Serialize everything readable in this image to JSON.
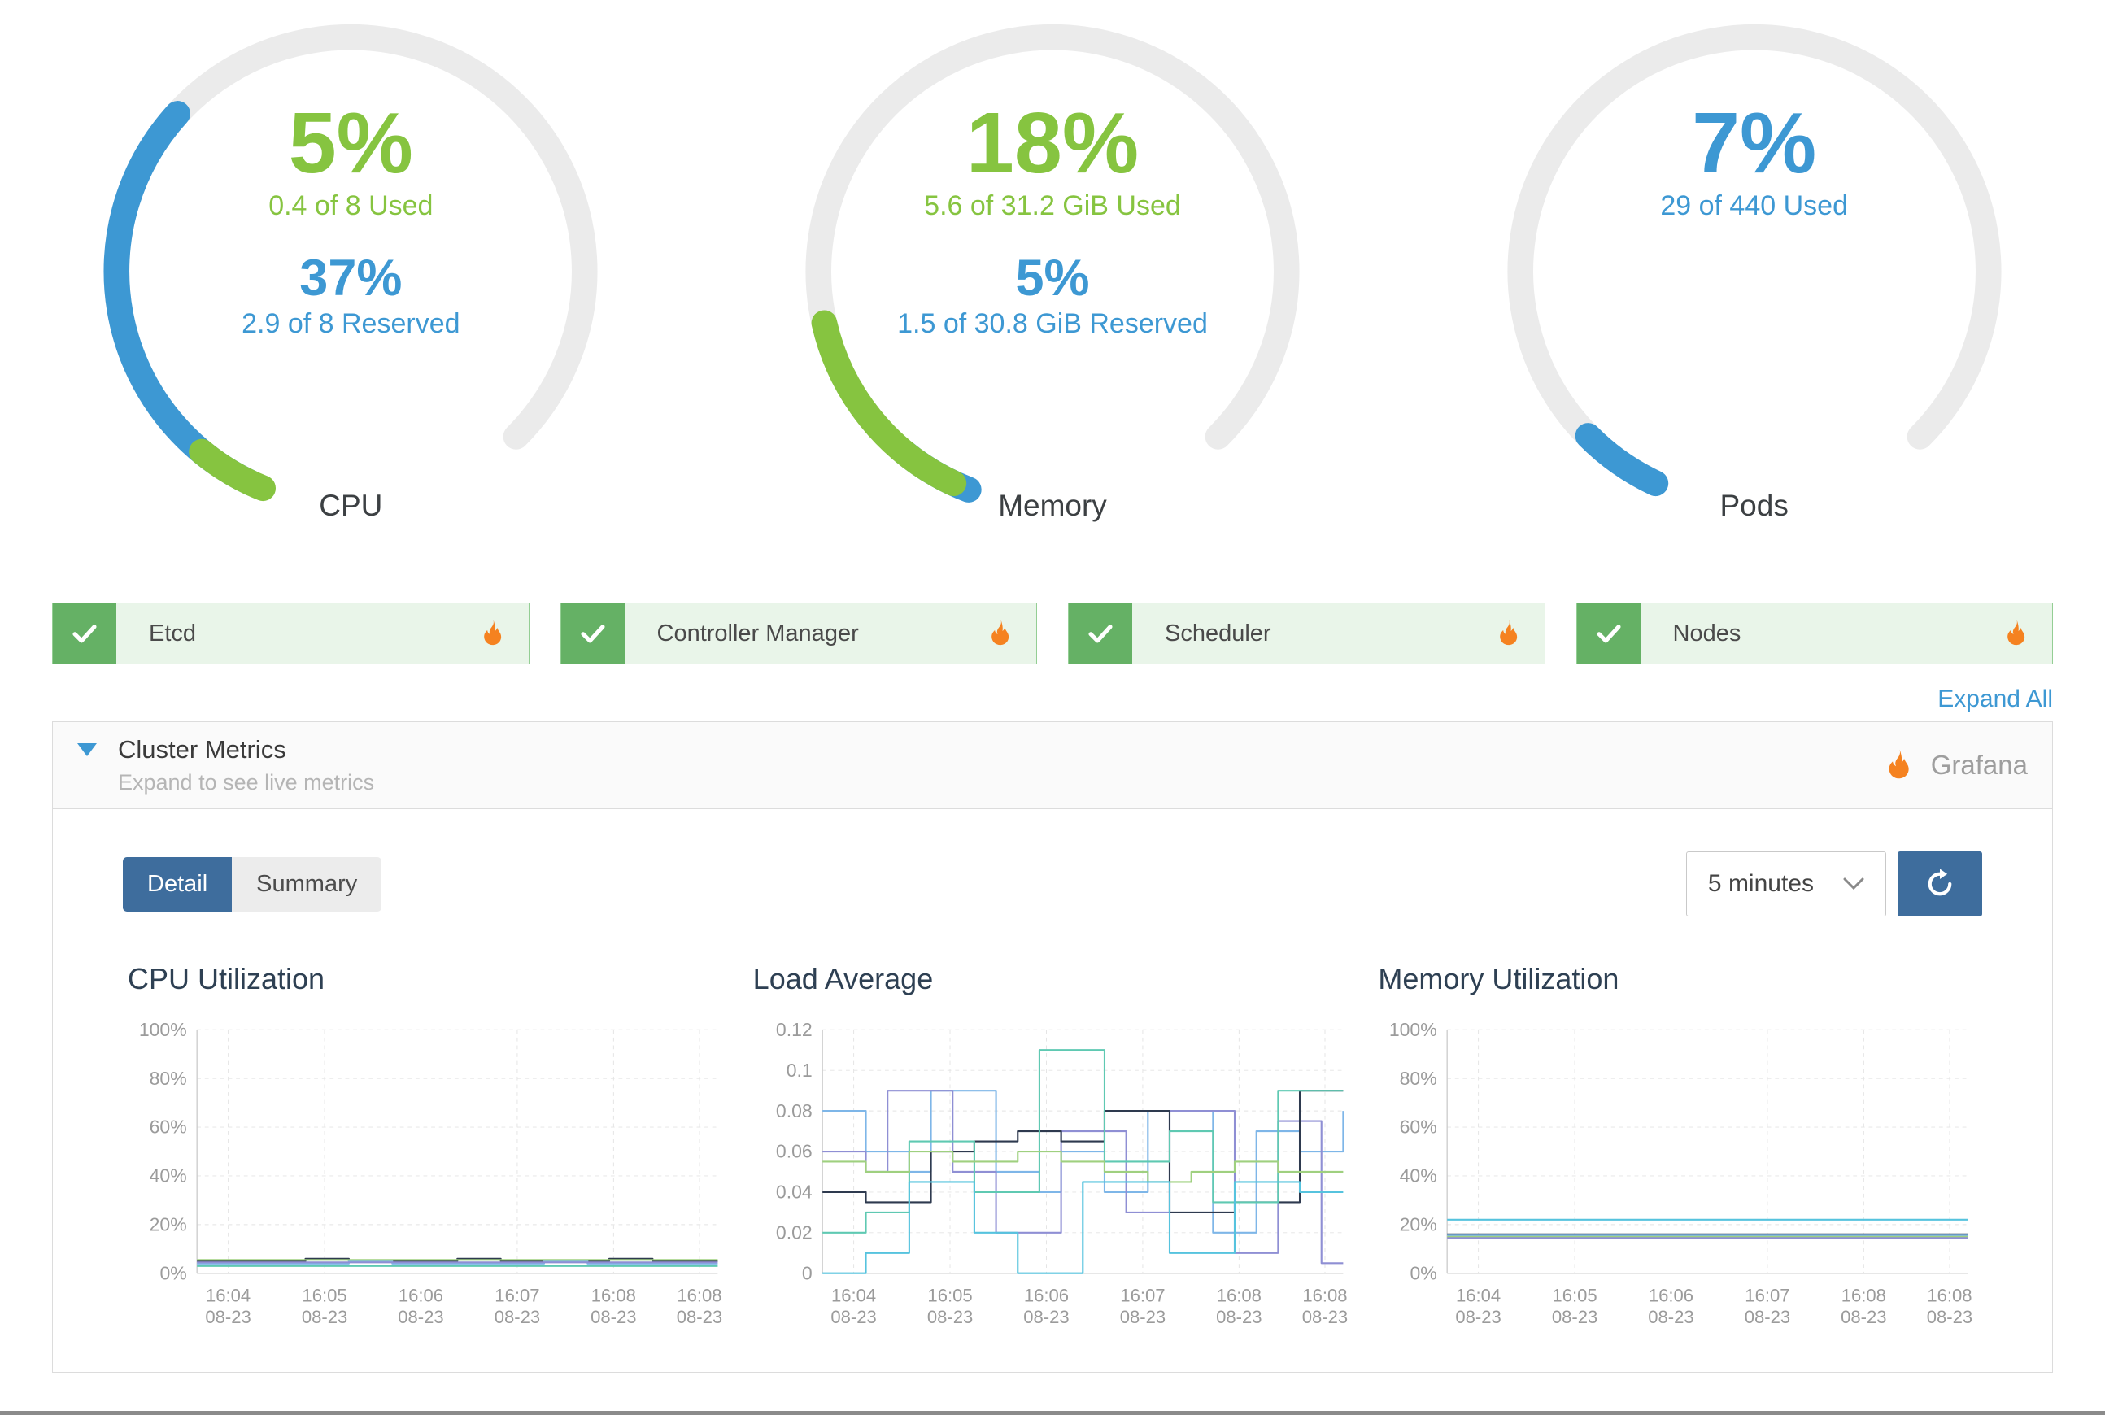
{
  "colors": {
    "green": "#86c440",
    "blue": "#3d98d3",
    "track": "#ebebeb",
    "grafana_orange": "#f58220",
    "button_blue": "#3e6d9d",
    "card_bg": "#e9f5e9",
    "card_border": "#94ce94",
    "check_green": "#65b165",
    "link_blue": "#3d98d3"
  },
  "gauges": [
    {
      "label": "CPU",
      "primary_pct": "5%",
      "primary_sub": "0.4 of 8 Used",
      "secondary_pct": "37%",
      "secondary_sub": "2.9 of 8 Reserved",
      "arcs": [
        {
          "fraction": 0.37,
          "color": "blue",
          "offset_deg": 0
        },
        {
          "fraction": 0.05,
          "color": "green",
          "offset_deg": -3
        }
      ]
    },
    {
      "label": "Memory",
      "primary_pct": "18%",
      "primary_sub": "5.6 of 31.2 GiB Used",
      "secondary_pct": "5%",
      "secondary_sub": "1.5 of 30.8 GiB Reserved",
      "arcs": [
        {
          "fraction": 0.05,
          "color": "blue",
          "offset_deg": -4
        },
        {
          "fraction": 0.18,
          "color": "green",
          "offset_deg": 0
        }
      ]
    },
    {
      "label": "Pods",
      "primary_pct": "7%",
      "primary_sub": "29 of 440 Used",
      "arcs": [
        {
          "fraction": 0.07,
          "color": "blue",
          "offset_deg": 0
        }
      ]
    }
  ],
  "status_cards": [
    {
      "label": "Etcd"
    },
    {
      "label": "Controller Manager"
    },
    {
      "label": "Scheduler"
    },
    {
      "label": "Nodes"
    }
  ],
  "expand_all_label": "Expand All",
  "cluster_metrics": {
    "title": "Cluster Metrics",
    "subtitle": "Expand to see live metrics",
    "brand_label": "Grafana"
  },
  "controls": {
    "detail_label": "Detail",
    "summary_label": "Summary",
    "timeframe_value": "5 minutes"
  },
  "chart_data": [
    {
      "type": "line",
      "title": "CPU Utilization",
      "ylabel": "",
      "ylim": [
        0,
        100
      ],
      "y_ticks": [
        {
          "label": "0%",
          "value": 0
        },
        {
          "label": "20%",
          "value": 20
        },
        {
          "label": "40%",
          "value": 40
        },
        {
          "label": "60%",
          "value": 60
        },
        {
          "label": "80%",
          "value": 80
        },
        {
          "label": "100%",
          "value": 100
        }
      ],
      "x_tick_labels": [
        {
          "time": "16:04",
          "date": "08-23"
        },
        {
          "time": "16:05",
          "date": "08-23"
        },
        {
          "time": "16:06",
          "date": "08-23"
        },
        {
          "time": "16:07",
          "date": "08-23"
        },
        {
          "time": "16:08",
          "date": "08-23"
        },
        {
          "time": "16:08",
          "date": "08-23"
        }
      ],
      "series": [
        {
          "color": "#2e3a4f",
          "values": [
            5,
            5,
            5,
            5,
            5,
            6,
            6,
            5,
            5,
            5,
            5,
            5,
            6,
            6,
            5,
            5,
            5,
            5,
            5,
            6,
            6,
            5,
            5,
            5,
            5
          ]
        },
        {
          "color": "#7eb6e8",
          "values": [
            4,
            4,
            4,
            4,
            4,
            4,
            4,
            5,
            5,
            4,
            4,
            4,
            4,
            4,
            4,
            4,
            5,
            5,
            4,
            4,
            4,
            4,
            4,
            4,
            4
          ]
        },
        {
          "color": "#5fc9b2",
          "values": [
            3,
            3,
            3,
            3,
            3,
            3,
            3,
            3,
            3,
            3,
            3,
            3,
            3,
            3,
            3,
            3,
            3,
            3,
            3,
            3,
            3,
            3,
            3,
            3,
            3
          ]
        },
        {
          "color": "#9fd07f",
          "values": [
            5.5,
            5.5,
            5.5,
            5.5,
            5.5,
            5.5,
            5.5,
            5.5,
            5.5,
            5.5,
            5.5,
            5.5,
            5.5,
            5.5,
            5.5,
            5.5,
            5.5,
            5.5,
            5.5,
            5.5,
            5.5,
            5.5,
            5.5,
            5.5,
            5.5
          ]
        },
        {
          "color": "#8f8fd4",
          "values": [
            4.5,
            4.5,
            4.5,
            4.5,
            4.5,
            4.5,
            4.5,
            4.5,
            4.5,
            4.5,
            4.5,
            4.5,
            4.5,
            4.5,
            4.5,
            4.5,
            4.5,
            4.5,
            4.5,
            4.5,
            4.5,
            4.5,
            4.5,
            4.5,
            4.5
          ]
        }
      ]
    },
    {
      "type": "line",
      "title": "Load Average",
      "ylabel": "",
      "ylim": [
        0,
        0.12
      ],
      "y_ticks": [
        {
          "label": "0",
          "value": 0
        },
        {
          "label": "0.02",
          "value": 0.02
        },
        {
          "label": "0.04",
          "value": 0.04
        },
        {
          "label": "0.06",
          "value": 0.06
        },
        {
          "label": "0.08",
          "value": 0.08
        },
        {
          "label": "0.1",
          "value": 0.1
        },
        {
          "label": "0.12",
          "value": 0.12
        }
      ],
      "x_tick_labels": [
        {
          "time": "16:04",
          "date": "08-23"
        },
        {
          "time": "16:05",
          "date": "08-23"
        },
        {
          "time": "16:06",
          "date": "08-23"
        },
        {
          "time": "16:07",
          "date": "08-23"
        },
        {
          "time": "16:08",
          "date": "08-23"
        },
        {
          "time": "16:08",
          "date": "08-23"
        }
      ],
      "series": [
        {
          "color": "#7eb6e8",
          "values": [
            0.08,
            0.08,
            0.06,
            0.06,
            0.05,
            0.09,
            0.09,
            0.09,
            0.05,
            0.05,
            0.04,
            0.06,
            0.06,
            0.04,
            0.04,
            0.08,
            0.08,
            0.08,
            0.02,
            0.02,
            0.07,
            0.07,
            0.06,
            0.06,
            0.08
          ]
        },
        {
          "color": "#8f8fd4",
          "values": [
            0.06,
            0.06,
            0.05,
            0.09,
            0.09,
            0.09,
            0.05,
            0.05,
            0.02,
            0.02,
            0.02,
            0.07,
            0.07,
            0.07,
            0.03,
            0.03,
            0.08,
            0.08,
            0.08,
            0.01,
            0.01,
            0.075,
            0.075,
            0.005,
            0.005
          ]
        },
        {
          "color": "#2e3a4f",
          "values": [
            0.04,
            0.04,
            0.035,
            0.035,
            0.035,
            0.06,
            0.06,
            0.065,
            0.065,
            0.07,
            0.07,
            0.065,
            0.065,
            0.08,
            0.08,
            0.08,
            0.03,
            0.03,
            0.03,
            0.035,
            0.035,
            0.035,
            0.09,
            0.09,
            0.09
          ]
        },
        {
          "color": "#5fc9b2",
          "values": [
            0.02,
            0.02,
            0.03,
            0.03,
            0.065,
            0.065,
            0.065,
            0.04,
            0.04,
            0.04,
            0.11,
            0.11,
            0.11,
            0.055,
            0.055,
            0.055,
            0.07,
            0.07,
            0.035,
            0.035,
            0.035,
            0.09,
            0.09,
            0.09,
            0.09
          ]
        },
        {
          "color": "#9fd07f",
          "values": [
            0.055,
            0.055,
            0.05,
            0.05,
            0.06,
            0.06,
            0.055,
            0.055,
            0.055,
            0.06,
            0.06,
            0.055,
            0.055,
            0.05,
            0.05,
            0.045,
            0.045,
            0.05,
            0.05,
            0.055,
            0.055,
            0.05,
            0.05,
            0.05,
            0.05
          ]
        },
        {
          "color": "#56c3de",
          "values": [
            0,
            0,
            0.01,
            0.01,
            0.045,
            0.045,
            0.045,
            0.02,
            0.02,
            0,
            0,
            0,
            0.045,
            0.045,
            0.045,
            0.045,
            0.01,
            0.01,
            0.01,
            0.045,
            0.045,
            0.045,
            0.04,
            0.04,
            0.04
          ]
        }
      ]
    },
    {
      "type": "line",
      "title": "Memory Utilization",
      "ylabel": "",
      "ylim": [
        0,
        100
      ],
      "y_ticks": [
        {
          "label": "0%",
          "value": 0
        },
        {
          "label": "20%",
          "value": 20
        },
        {
          "label": "40%",
          "value": 40
        },
        {
          "label": "60%",
          "value": 60
        },
        {
          "label": "80%",
          "value": 80
        },
        {
          "label": "100%",
          "value": 100
        }
      ],
      "x_tick_labels": [
        {
          "time": "16:04",
          "date": "08-23"
        },
        {
          "time": "16:05",
          "date": "08-23"
        },
        {
          "time": "16:06",
          "date": "08-23"
        },
        {
          "time": "16:07",
          "date": "08-23"
        },
        {
          "time": "16:08",
          "date": "08-23"
        },
        {
          "time": "16:08",
          "date": "08-23"
        }
      ],
      "series": [
        {
          "color": "#56c3de",
          "values": [
            22,
            22
          ]
        },
        {
          "color": "#2e3a4f",
          "values": [
            16,
            16
          ]
        },
        {
          "color": "#7eb6e8",
          "values": [
            15.5,
            15.5
          ]
        },
        {
          "color": "#9fd07f",
          "values": [
            15,
            15
          ]
        },
        {
          "color": "#8f8fd4",
          "values": [
            14.5,
            14.5
          ]
        }
      ]
    }
  ]
}
